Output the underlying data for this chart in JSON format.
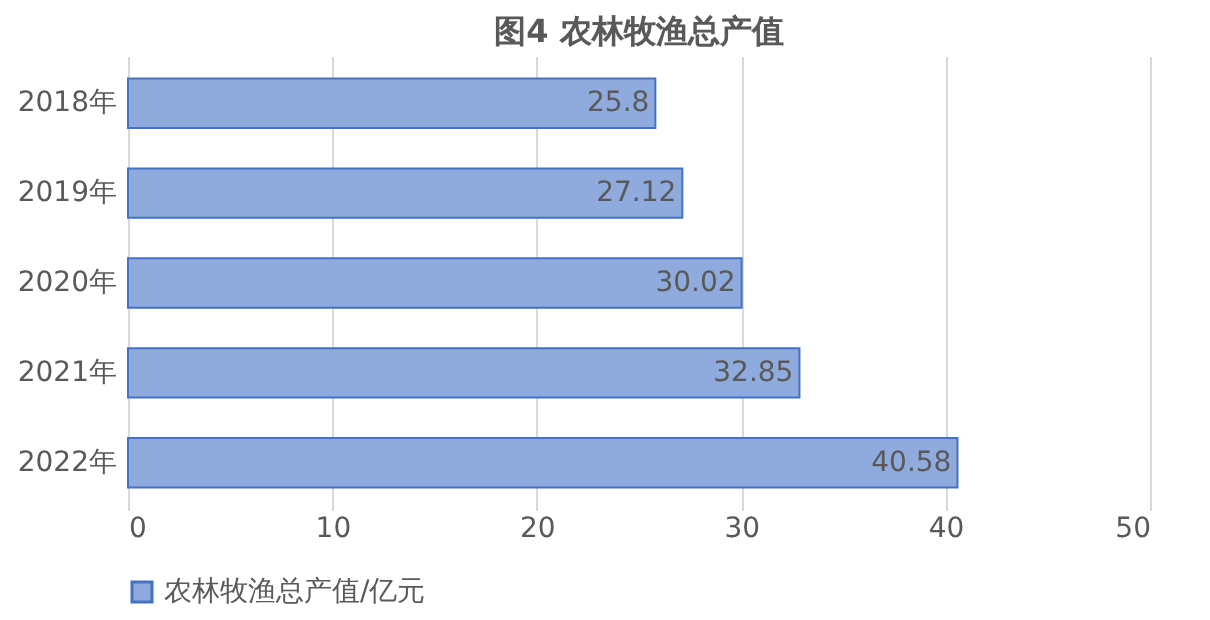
{
  "chart_data": {
    "type": "bar",
    "orientation": "horizontal",
    "title": "图4  农林牧渔总产值",
    "categories": [
      "2018年",
      "2019年",
      "2020年",
      "2021年",
      "2022年"
    ],
    "series": [
      {
        "name": "农林牧渔总产值/亿元",
        "color": "#8faadc",
        "values": [
          25.8,
          27.12,
          30.02,
          32.85,
          40.58
        ]
      }
    ],
    "xlim": [
      0,
      50
    ],
    "xticks": [
      0,
      10,
      20,
      30,
      40,
      50
    ],
    "grid": "x",
    "legend": "bottom",
    "data_labels": true
  }
}
